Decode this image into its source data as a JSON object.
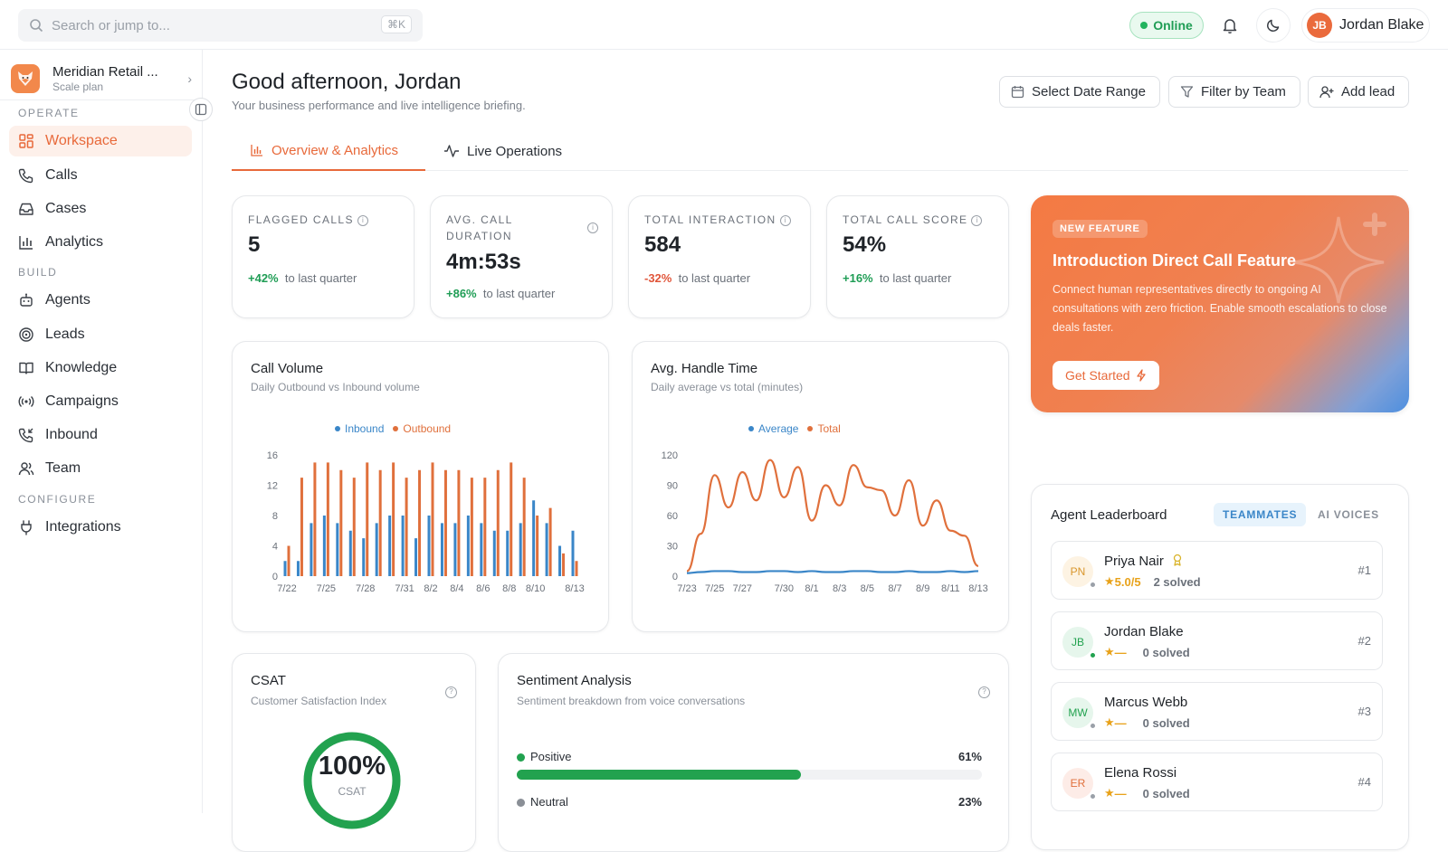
{
  "topbar": {
    "search_placeholder": "Search or jump to...",
    "search_shortcut": "⌘K",
    "status": "Online",
    "user_initials": "JB",
    "user_name": "Jordan Blake"
  },
  "sidebar": {
    "org_name": "Meridian Retail ...",
    "org_plan": "Scale plan",
    "sections": [
      "OPERATE",
      "BUILD",
      "CONFIGURE"
    ],
    "items": [
      {
        "label": "Workspace",
        "icon": "grid-icon",
        "active": true
      },
      {
        "label": "Calls",
        "icon": "phone-icon"
      },
      {
        "label": "Cases",
        "icon": "inbox-icon"
      },
      {
        "label": "Analytics",
        "icon": "bar-chart-icon"
      },
      {
        "label": "Agents",
        "icon": "bot-icon"
      },
      {
        "label": "Leads",
        "icon": "target-icon"
      },
      {
        "label": "Knowledge",
        "icon": "book-icon"
      },
      {
        "label": "Campaigns",
        "icon": "broadcast-icon"
      },
      {
        "label": "Inbound",
        "icon": "phone-incoming-icon"
      },
      {
        "label": "Team",
        "icon": "users-icon"
      },
      {
        "label": "Integrations",
        "icon": "plug-icon"
      }
    ]
  },
  "header": {
    "greeting": "Good afternoon, Jordan",
    "subtitle": "Your business performance and live intelligence briefing.",
    "date_range_label": "Select Date Range",
    "filter_label": "Filter by Team",
    "add_lead_label": "Add lead"
  },
  "tabs": [
    {
      "label": "Overview & Analytics",
      "active": true
    },
    {
      "label": "Live Operations"
    }
  ],
  "stats": [
    {
      "label": "FLAGGED CALLS",
      "value": "5",
      "delta": "+42%",
      "delta_text": "to last quarter",
      "trend": "up"
    },
    {
      "label": "AVG. CALL DURATION",
      "value": "4m:53s",
      "delta": "+86%",
      "delta_text": "to last quarter",
      "trend": "up"
    },
    {
      "label": "TOTAL INTERACTION",
      "value": "584",
      "delta": "-32%",
      "delta_text": "to last quarter",
      "trend": "down"
    },
    {
      "label": "TOTAL CALL SCORE",
      "value": "54%",
      "delta": "+16%",
      "delta_text": "to last quarter",
      "trend": "up"
    }
  ],
  "promo": {
    "badge": "NEW FEATURE",
    "title": "Introduction Direct Call Feature",
    "text": "Connect human representatives directly to ongoing AI consultations with zero friction. Enable smooth escalations to close deals faster.",
    "button": "Get Started"
  },
  "colors": {
    "accent": "#e8693a",
    "inbound": "#3a86c8",
    "outbound": "#e0703c",
    "positive": "#22a24f",
    "neutral": "#8a8f96"
  },
  "chart_data": [
    {
      "type": "bar",
      "title": "Call Volume",
      "subtitle": "Daily Outbound vs Inbound volume",
      "categories": [
        "7/22",
        "7/23",
        "7/24",
        "7/25",
        "7/26",
        "7/27",
        "7/28",
        "7/29",
        "7/30",
        "7/31",
        "8/1",
        "8/2",
        "8/3",
        "8/4",
        "8/5",
        "8/6",
        "8/7",
        "8/8",
        "8/9",
        "8/10",
        "8/11",
        "8/12",
        "8/13"
      ],
      "tick_labels": [
        "7/22",
        "7/25",
        "7/28",
        "7/31",
        "8/2",
        "8/4",
        "8/6",
        "8/8",
        "8/10",
        "8/13"
      ],
      "series": [
        {
          "name": "Inbound",
          "values": [
            2,
            2,
            7,
            8,
            7,
            6,
            5,
            7,
            8,
            8,
            5,
            8,
            7,
            7,
            8,
            7,
            6,
            6,
            7,
            10,
            7,
            4,
            6
          ]
        },
        {
          "name": "Outbound",
          "values": [
            4,
            13,
            15,
            15,
            14,
            13,
            15,
            14,
            15,
            13,
            14,
            15,
            14,
            14,
            13,
            13,
            14,
            15,
            13,
            8,
            9,
            3,
            2
          ]
        }
      ],
      "y_ticks": [
        0,
        4,
        8,
        12,
        16
      ],
      "ylim": [
        0,
        16
      ],
      "legend": "top-center"
    },
    {
      "type": "line",
      "title": "Avg. Handle Time",
      "subtitle": "Daily average vs total (minutes)",
      "x": [
        "7/23",
        "7/24",
        "7/25",
        "7/26",
        "7/27",
        "7/28",
        "7/29",
        "7/30",
        "7/31",
        "8/1",
        "8/2",
        "8/3",
        "8/4",
        "8/5",
        "8/6",
        "8/7",
        "8/8",
        "8/9",
        "8/10",
        "8/11",
        "8/12",
        "8/13"
      ],
      "tick_labels": [
        "7/23",
        "7/25",
        "7/27",
        "7/30",
        "8/1",
        "8/3",
        "8/5",
        "8/7",
        "8/9",
        "8/11",
        "8/13"
      ],
      "series": [
        {
          "name": "Average",
          "values": [
            3,
            4,
            5,
            5,
            4,
            4,
            5,
            5,
            4,
            5,
            4,
            4,
            5,
            5,
            4,
            4,
            5,
            4,
            4,
            5,
            4,
            5
          ]
        },
        {
          "name": "Total",
          "values": [
            5,
            42,
            100,
            68,
            103,
            75,
            115,
            78,
            108,
            55,
            90,
            70,
            110,
            88,
            85,
            60,
            95,
            50,
            75,
            45,
            40,
            10
          ]
        }
      ],
      "y_ticks": [
        0,
        30,
        60,
        90,
        120
      ],
      "ylim": [
        0,
        120
      ],
      "legend": "top-center"
    }
  ],
  "leaderboard": {
    "title": "Agent Leaderboard",
    "tab_active": "TEAMMATES",
    "tab_other": "AI VOICES",
    "agents": [
      {
        "initials": "PN",
        "name": "Priya Nair",
        "rating": "5.0/5",
        "solved": "2 solved",
        "rank": "#1",
        "top": true
      },
      {
        "initials": "JB",
        "name": "Jordan Blake",
        "rating": "—",
        "solved": "0 solved",
        "rank": "#2"
      },
      {
        "initials": "MW",
        "name": "Marcus Webb",
        "rating": "—",
        "solved": "0 solved",
        "rank": "#3"
      },
      {
        "initials": "ER",
        "name": "Elena Rossi",
        "rating": "—",
        "solved": "0 solved",
        "rank": "#4"
      }
    ]
  },
  "csat": {
    "title": "CSAT",
    "subtitle": "Customer Satisfaction Index",
    "value": "100%",
    "label": "CSAT",
    "fraction": 1.0
  },
  "sentiment": {
    "title": "Sentiment Analysis",
    "subtitle": "Sentiment breakdown from voice conversations",
    "rows": [
      {
        "label": "Positive",
        "pct": "61%",
        "fraction": 0.61
      },
      {
        "label": "Neutral",
        "pct": "23%",
        "fraction": 0.23
      }
    ]
  }
}
